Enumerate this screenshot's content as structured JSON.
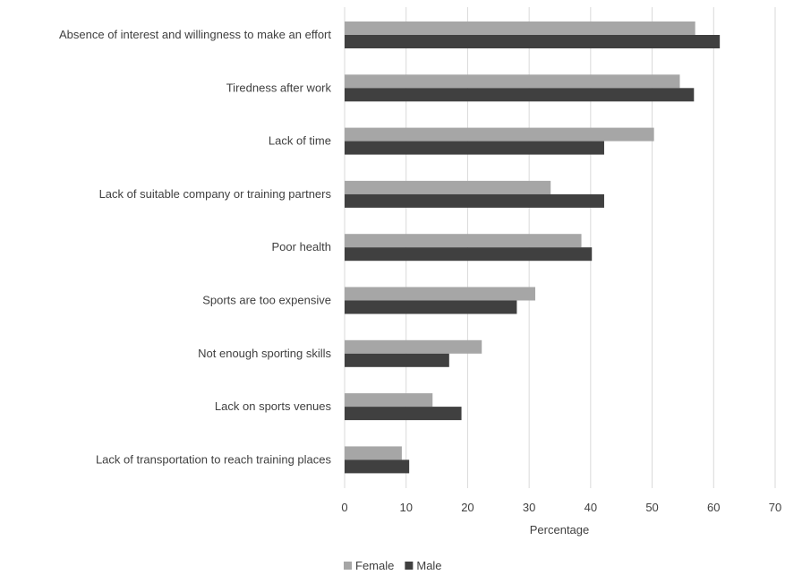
{
  "chart_data": {
    "type": "bar",
    "orientation": "horizontal",
    "categories": [
      "Absence of interest and willingness to make an effort",
      "Tiredness after work",
      "Lack of time",
      "Lack of suitable company or training partners",
      "Poor health",
      "Sports are too expensive",
      "Not enough sporting skills",
      "Lack on sports venues",
      "Lack of transportation to reach training places"
    ],
    "series": [
      {
        "name": "Female",
        "color": "#a6a6a6",
        "values": [
          57,
          54.5,
          50.3,
          33.5,
          38.5,
          31,
          22.3,
          14.3,
          9.3
        ]
      },
      {
        "name": "Male",
        "color": "#404040",
        "values": [
          61,
          56.8,
          42.2,
          42.2,
          40.2,
          28,
          17,
          19,
          10.5
        ]
      }
    ],
    "xlabel": "Percentage",
    "ylabel": "",
    "title": "",
    "xlim": [
      0,
      70
    ],
    "xticks": [
      0,
      10,
      20,
      30,
      40,
      50,
      60,
      70
    ],
    "grid": "vertical",
    "legend_position": "bottom-center"
  }
}
